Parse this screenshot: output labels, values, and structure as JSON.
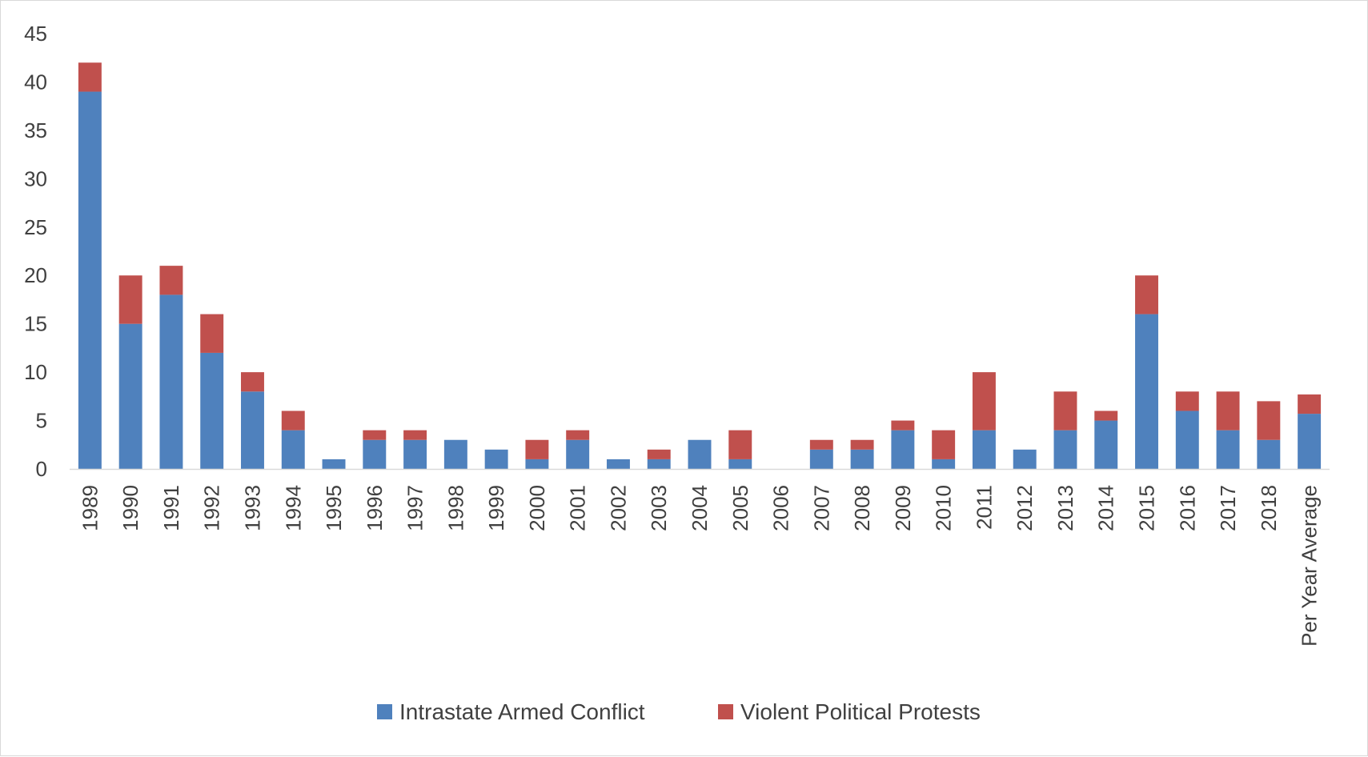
{
  "chart_data": {
    "type": "bar",
    "stacked": true,
    "categories": [
      "1989",
      "1990",
      "1991",
      "1992",
      "1993",
      "1994",
      "1995",
      "1996",
      "1997",
      "1998",
      "1999",
      "2000",
      "2001",
      "2002",
      "2003",
      "2004",
      "2005",
      "2006",
      "2007",
      "2008",
      "2009",
      "2010",
      "2011",
      "2012",
      "2013",
      "2014",
      "2015",
      "2016",
      "2017",
      "2018",
      "Per Year Average"
    ],
    "series": [
      {
        "name": "Intrastate Armed Conflict",
        "color": "#4f81bd",
        "values": [
          39,
          15,
          18,
          12,
          8,
          4,
          1,
          3,
          3,
          3,
          2,
          1,
          3,
          1,
          1,
          3,
          1,
          0,
          2,
          2,
          4,
          1,
          4,
          2,
          4,
          5,
          16,
          6,
          4,
          3,
          5.7
        ]
      },
      {
        "name": "Violent Political Protests",
        "color": "#c0504d",
        "values": [
          3,
          5,
          3,
          4,
          2,
          2,
          0,
          1,
          1,
          0,
          0,
          2,
          1,
          0,
          1,
          0,
          3,
          0,
          1,
          1,
          1,
          3,
          6,
          0,
          4,
          1,
          4,
          2,
          4,
          4,
          2.0
        ]
      }
    ],
    "ylim": [
      0,
      45
    ],
    "yticks": [
      "0",
      "5",
      "10",
      "15",
      "20",
      "25",
      "30",
      "35",
      "40",
      "45"
    ],
    "grid": false,
    "legend_position": "bottom"
  }
}
